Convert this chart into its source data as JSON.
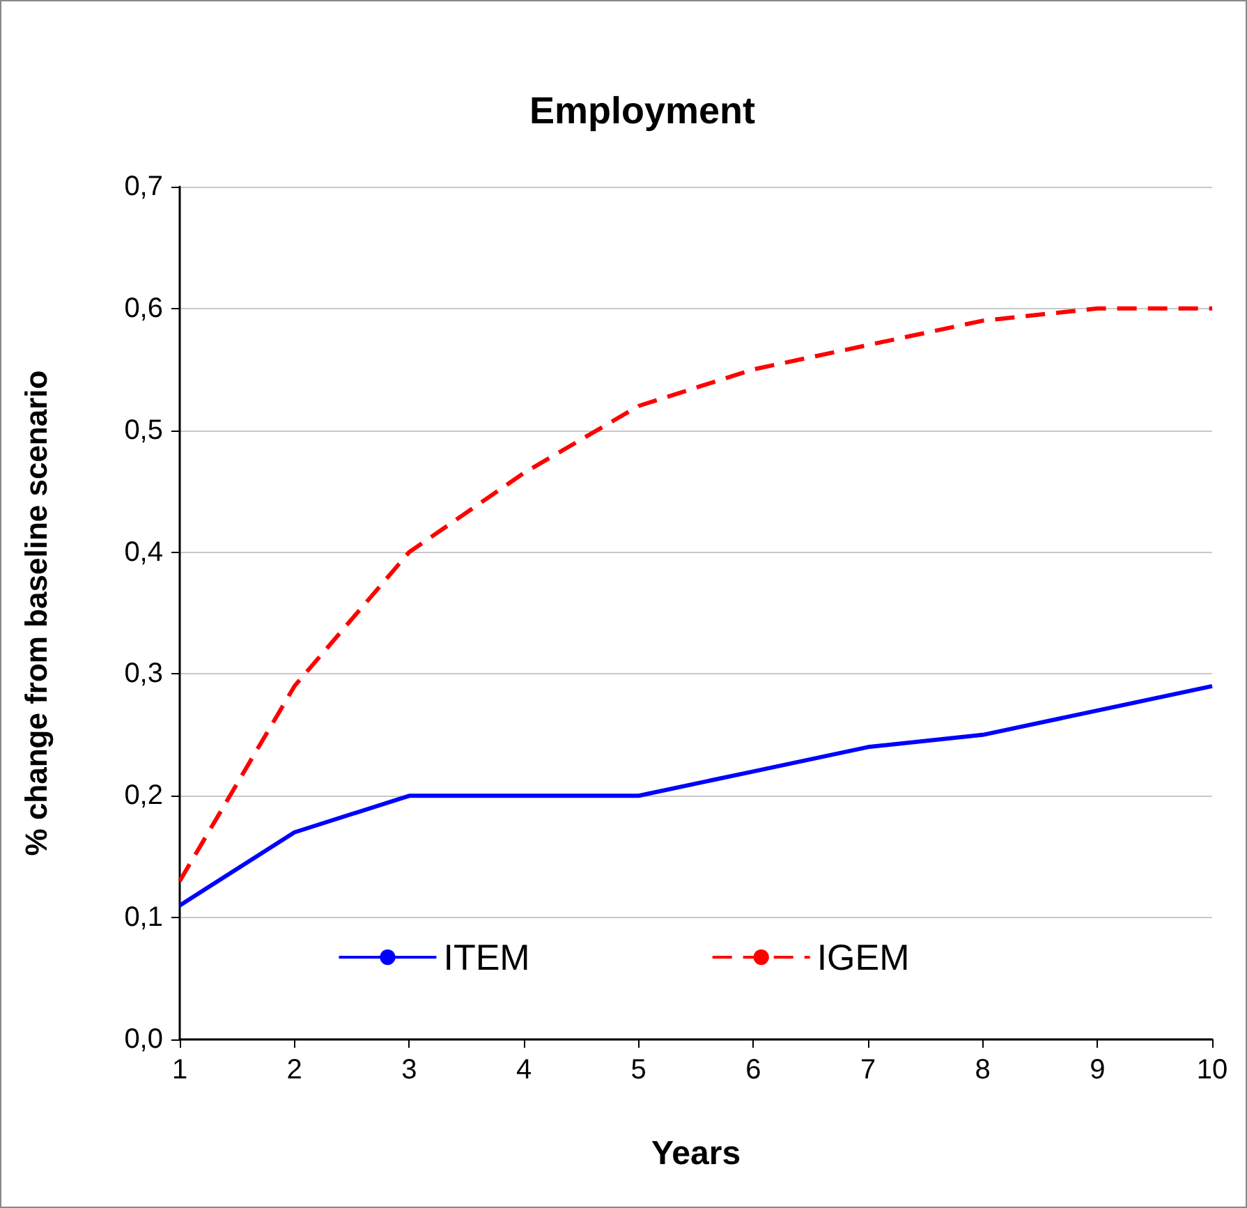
{
  "chart_data": {
    "type": "line",
    "title": "Employment",
    "xlabel": "Years",
    "ylabel": "% change from baseline scenario",
    "x": [
      1,
      2,
      3,
      4,
      5,
      6,
      7,
      8,
      9,
      10
    ],
    "series": [
      {
        "name": "ITEM",
        "color": "#0000ff",
        "line_style": "solid",
        "values": [
          0.11,
          0.17,
          0.2,
          0.2,
          0.2,
          0.22,
          0.24,
          0.25,
          0.27,
          0.29
        ]
      },
      {
        "name": "IGEM",
        "color": "#ff0000",
        "line_style": "dashed",
        "values": [
          0.13,
          0.29,
          0.4,
          0.465,
          0.52,
          0.55,
          0.57,
          0.59,
          0.6,
          0.6
        ]
      }
    ],
    "xlim": [
      1,
      10
    ],
    "xticks": [
      1,
      2,
      3,
      4,
      5,
      6,
      7,
      8,
      9,
      10
    ],
    "ylim": [
      0,
      0.7
    ],
    "yticks": [
      {
        "value": 0,
        "label": "0,0"
      },
      {
        "value": 0.1,
        "label": "0,1"
      },
      {
        "value": 0.2,
        "label": "0,2"
      },
      {
        "value": 0.3,
        "label": "0,3"
      },
      {
        "value": 0.4,
        "label": "0,4"
      },
      {
        "value": 0.5,
        "label": "0,5"
      },
      {
        "value": 0.6,
        "label": "0,6"
      },
      {
        "value": 0.7,
        "label": "0,7"
      }
    ],
    "grid": "y",
    "legend": "bottom",
    "marker": "none"
  }
}
